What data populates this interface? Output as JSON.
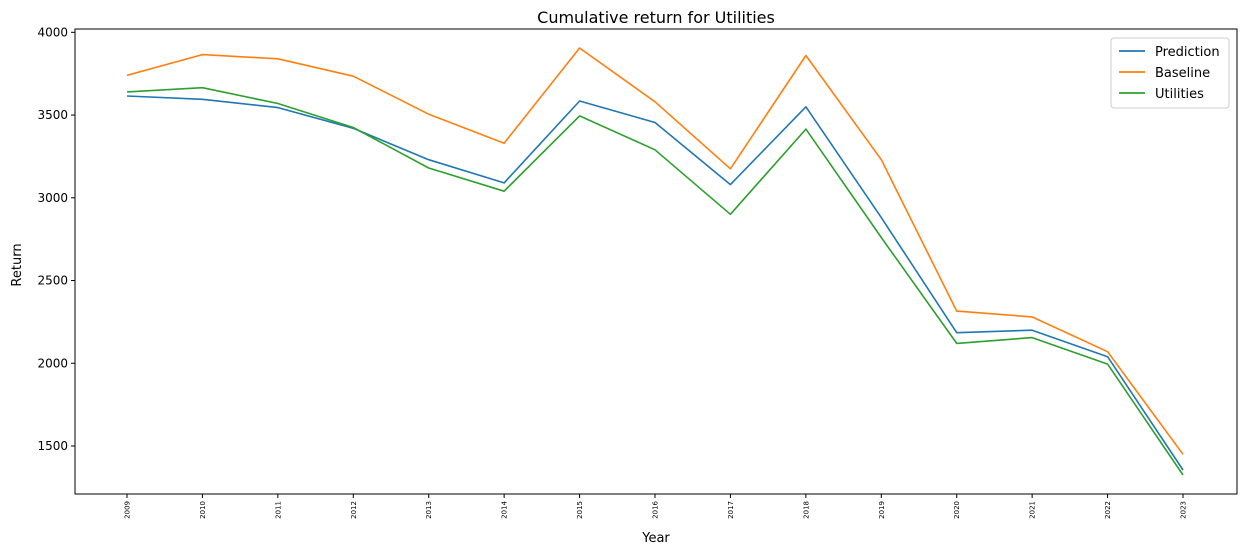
{
  "chart_data": {
    "type": "line",
    "title": "Cumulative return for Utilities",
    "xlabel": "Year",
    "ylabel": "Return",
    "categories": [
      "2009",
      "2010",
      "2011",
      "2012",
      "2013",
      "2014",
      "2015",
      "2016",
      "2017",
      "2018",
      "2019",
      "2020",
      "2021",
      "2022",
      "2023"
    ],
    "ylim": [
      1210,
      4020
    ],
    "yticks": [
      1500,
      2000,
      2500,
      3000,
      3500,
      4000
    ],
    "grid": false,
    "legend_position": "top-right",
    "series": [
      {
        "name": "Prediction",
        "color": "#1f77b4",
        "values": [
          3615,
          3595,
          3545,
          3420,
          3230,
          3090,
          3585,
          3455,
          3080,
          3550,
          2880,
          2185,
          2200,
          2040,
          1355
        ]
      },
      {
        "name": "Baseline",
        "color": "#ff7f0e",
        "values": [
          3740,
          3865,
          3840,
          3735,
          3505,
          3330,
          3905,
          3580,
          3175,
          3860,
          3230,
          2315,
          2280,
          2070,
          1450
        ]
      },
      {
        "name": "Utilities",
        "color": "#2ca02c",
        "values": [
          3640,
          3665,
          3570,
          3425,
          3180,
          3040,
          3495,
          3290,
          2900,
          3415,
          2760,
          2120,
          2155,
          1995,
          1325
        ]
      }
    ]
  }
}
